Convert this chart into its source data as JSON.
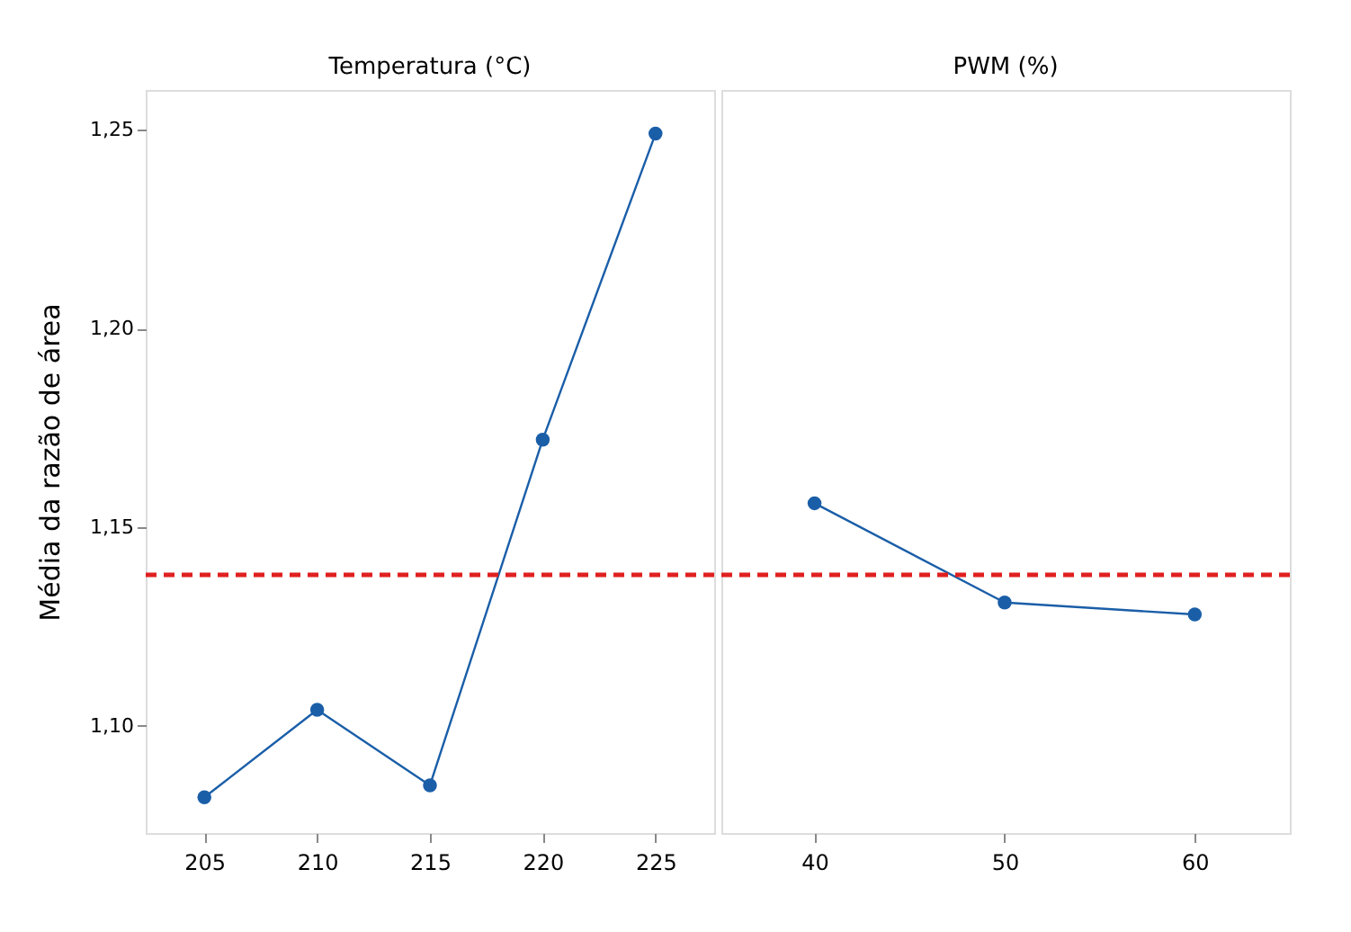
{
  "chart_data": [
    {
      "type": "line",
      "title": "Temperatura (°C)",
      "ylabel": "Média da razão de área",
      "x": [
        205,
        210,
        215,
        220,
        225
      ],
      "series": [
        {
          "color": "#1a5ea8",
          "values": [
            1.082,
            1.104,
            1.085,
            1.172,
            1.249
          ]
        }
      ],
      "xlim": [
        202.4,
        227.6
      ],
      "xticks": [
        205,
        210,
        215,
        220,
        225
      ],
      "ylim": [
        1.073,
        1.26
      ],
      "yticks": [
        {
          "value": 1.1,
          "label": "1,10"
        },
        {
          "value": 1.15,
          "label": "1,15"
        },
        {
          "value": 1.2,
          "label": "1,20"
        },
        {
          "value": 1.25,
          "label": "1,25"
        }
      ],
      "ref_lines": [
        {
          "axis": "y",
          "value": 1.138,
          "color": "#e02020",
          "line_style": "dashed"
        }
      ],
      "marker": "circle",
      "line_style": "solid",
      "grid": false
    },
    {
      "type": "line",
      "title": "PWM (%)",
      "x": [
        40,
        50,
        60
      ],
      "series": [
        {
          "color": "#1a5ea8",
          "values": [
            1.156,
            1.131,
            1.128
          ]
        }
      ],
      "xlim": [
        35.1,
        65
      ],
      "xticks": [
        40,
        50,
        60
      ],
      "ylim": [
        1.073,
        1.26
      ],
      "ref_lines": [
        {
          "axis": "y",
          "value": 1.138,
          "color": "#e02020",
          "line_style": "dashed"
        }
      ],
      "marker": "circle",
      "line_style": "solid",
      "grid": false,
      "tick_labels": "x"
    }
  ]
}
